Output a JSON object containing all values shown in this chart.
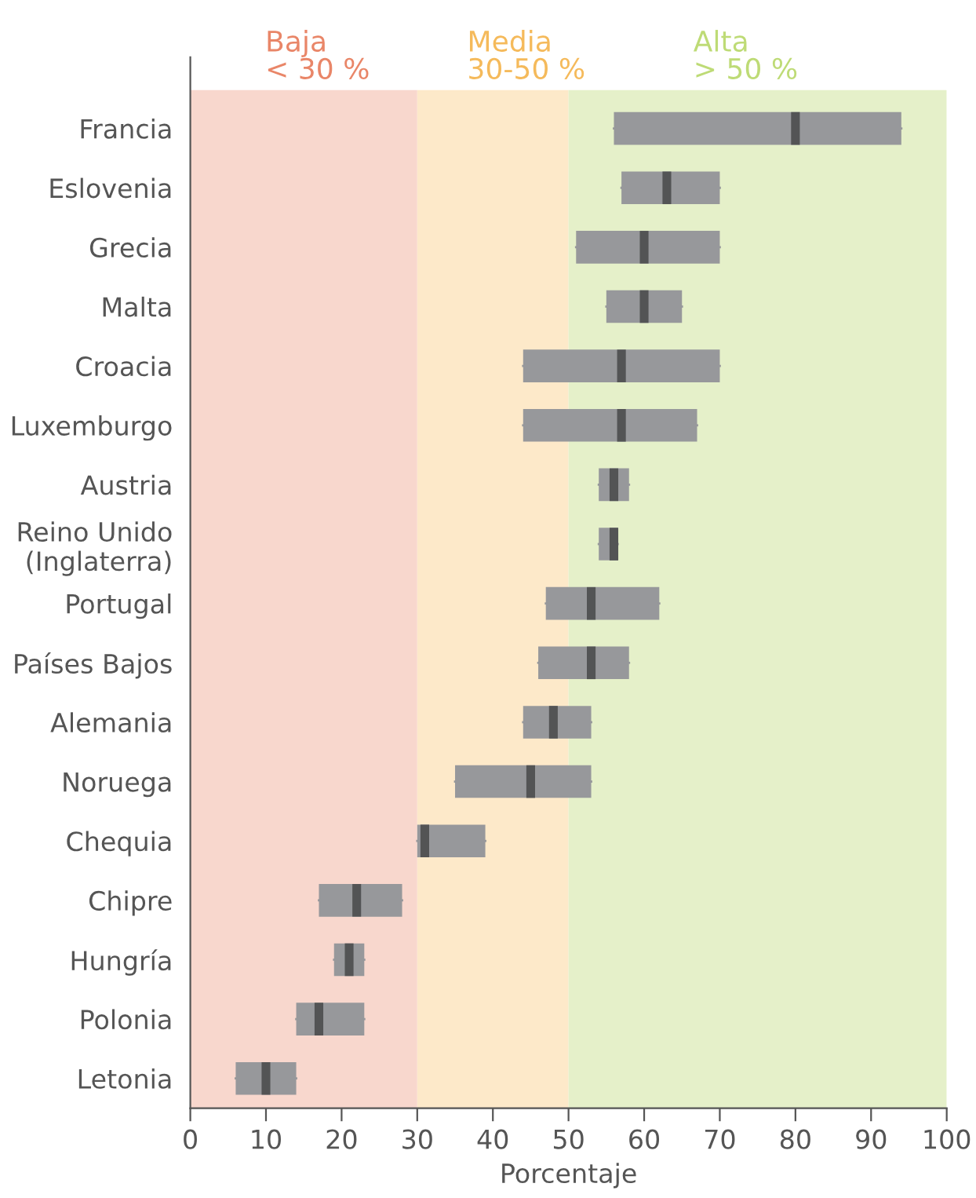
{
  "chart_data": {
    "type": "box",
    "orientation": "horizontal",
    "xlabel": "Porcentaje",
    "categories": [
      "Francia",
      "Eslovenia",
      "Grecia",
      "Malta",
      "Croacia",
      "Luxemburgo",
      "Austria",
      "Reino Unido\n(Inglaterra)",
      "Portugal",
      "Países Bajos",
      "Alemania",
      "Noruega",
      "Chequia",
      "Chipre",
      "Hungría",
      "Polonia",
      "Letonia"
    ],
    "series": [
      {
        "color": "#97989b",
        "boxes": [
          {
            "low": 56,
            "q1": 56,
            "median": 80,
            "q3": 94,
            "high": 94
          },
          {
            "low": 57,
            "q1": 57,
            "median": 63,
            "q3": 70,
            "high": 70
          },
          {
            "low": 51,
            "q1": 51,
            "median": 60,
            "q3": 70,
            "high": 70
          },
          {
            "low": 55,
            "q1": 55,
            "median": 60,
            "q3": 65,
            "high": 65
          },
          {
            "low": 44,
            "q1": 44,
            "median": 57,
            "q3": 70,
            "high": 70
          },
          {
            "low": 44,
            "q1": 44,
            "median": 57,
            "q3": 67,
            "high": 67
          },
          {
            "low": 54,
            "q1": 54,
            "median": 56,
            "q3": 58,
            "high": 58
          },
          {
            "low": 54,
            "q1": 54,
            "median": 56,
            "q3": 56.5,
            "high": 56.5
          },
          {
            "low": 47,
            "q1": 47,
            "median": 53,
            "q3": 62,
            "high": 62
          },
          {
            "low": 46,
            "q1": 46,
            "median": 53,
            "q3": 58,
            "high": 58
          },
          {
            "low": 44,
            "q1": 44,
            "median": 48,
            "q3": 53,
            "high": 53
          },
          {
            "low": 35,
            "q1": 35,
            "median": 45,
            "q3": 53,
            "high": 53
          },
          {
            "low": 30,
            "q1": 30,
            "median": 31,
            "q3": 39,
            "high": 39
          },
          {
            "low": 17,
            "q1": 17,
            "median": 22,
            "q3": 28,
            "high": 28
          },
          {
            "low": 19,
            "q1": 19,
            "median": 21,
            "q3": 23,
            "high": 23
          },
          {
            "low": 14,
            "q1": 14,
            "median": 17,
            "q3": 23,
            "high": 23
          },
          {
            "low": 6,
            "q1": 6,
            "median": 10,
            "q3": 14,
            "high": 14
          }
        ]
      }
    ],
    "xlim": [
      0,
      100
    ],
    "xticks": [
      0,
      10,
      20,
      30,
      40,
      50,
      60,
      70,
      80,
      90,
      100
    ],
    "bands": [
      {
        "axis": "x",
        "from": 0,
        "to": 30,
        "label": "Baja\n< 30 %",
        "color": "#f8d7cd"
      },
      {
        "axis": "x",
        "from": 30,
        "to": 50,
        "label": "Media\n30-50 %",
        "color": "#fde9c9"
      },
      {
        "axis": "x",
        "from": 50,
        "to": 100,
        "label": "Alta\n> 50 %",
        "color": "#e5f0c9"
      }
    ],
    "grid": false,
    "legend": false
  }
}
